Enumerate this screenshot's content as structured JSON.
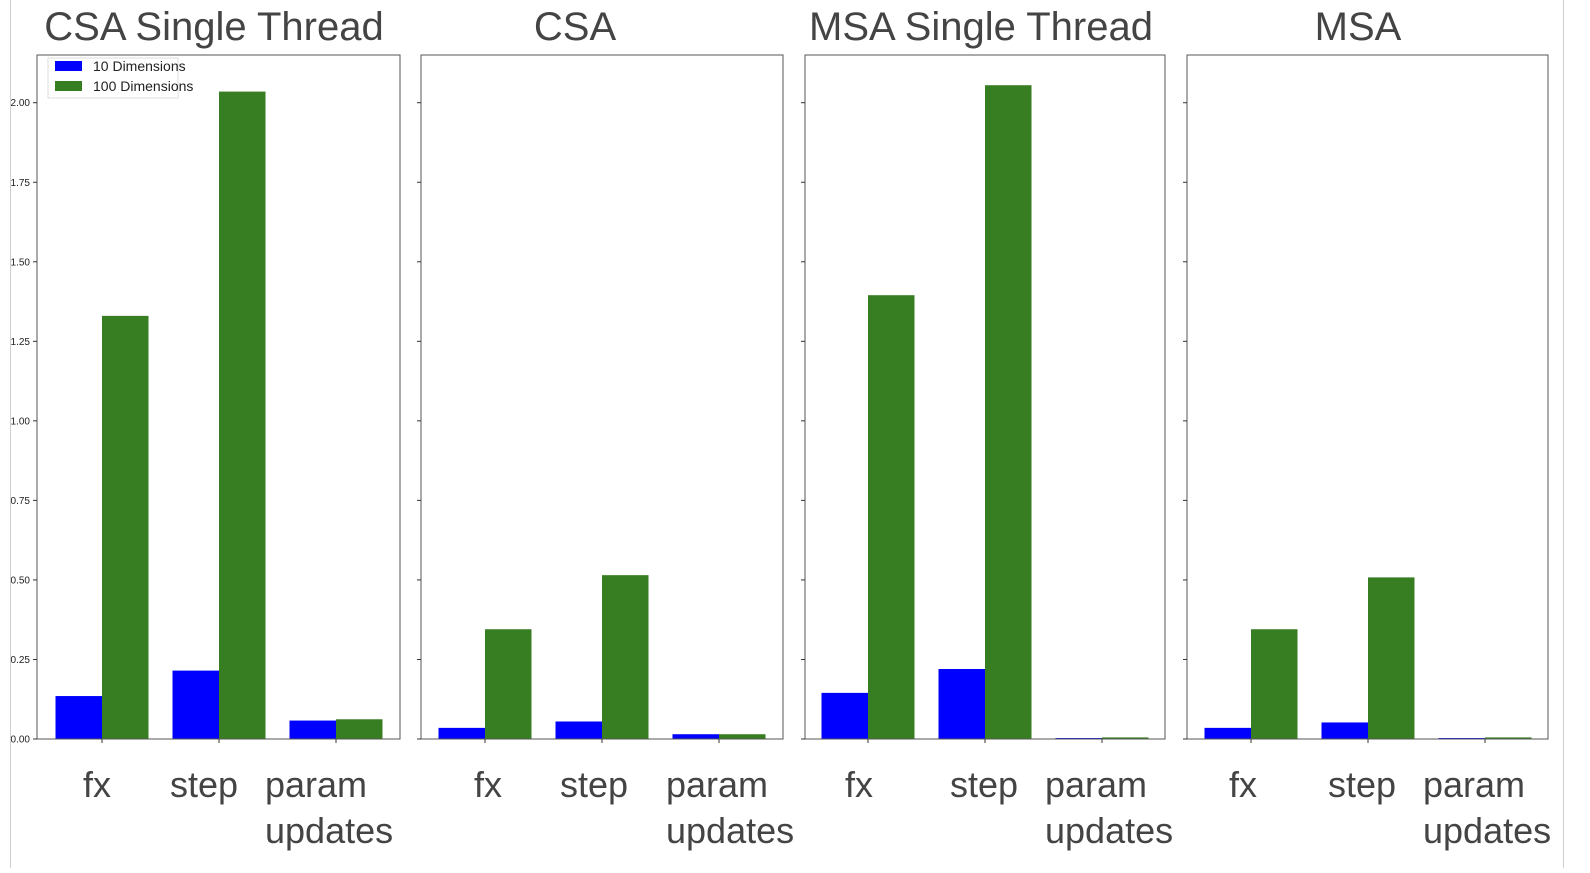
{
  "chart_data": {
    "type": "bar",
    "ylim": [
      0,
      2.15
    ],
    "yticks": [
      "0.00",
      "0.25",
      "0.50",
      "0.75",
      "1.00",
      "1.25",
      "1.50",
      "1.75",
      "2.00"
    ],
    "legend": {
      "placement": "top-left",
      "entries": [
        {
          "label": "10 Dimensions",
          "color": "#0000ff"
        },
        {
          "label": "100 Dimensions",
          "color": "#377e22"
        }
      ]
    },
    "panels": [
      {
        "title": "CSA Single Thread",
        "categories": [
          [
            "fx"
          ],
          [
            "step"
          ],
          [
            "param",
            "updates"
          ]
        ],
        "series": [
          {
            "name": "10 Dimensions",
            "color": "#0000ff",
            "values": [
              0.135,
              0.215,
              0.058
            ]
          },
          {
            "name": "100 Dimensions",
            "color": "#377e22",
            "values": [
              1.33,
              2.035,
              0.062
            ]
          }
        ]
      },
      {
        "title": "CSA",
        "categories": [
          [
            "fx"
          ],
          [
            "step"
          ],
          [
            "param",
            "updates"
          ]
        ],
        "series": [
          {
            "name": "10 Dimensions",
            "color": "#0000ff",
            "values": [
              0.035,
              0.055,
              0.015
            ]
          },
          {
            "name": "100 Dimensions",
            "color": "#377e22",
            "values": [
              0.345,
              0.515,
              0.015
            ]
          }
        ]
      },
      {
        "title": "MSA Single Thread",
        "categories": [
          [
            "fx"
          ],
          [
            "step"
          ],
          [
            "param",
            "updates"
          ]
        ],
        "series": [
          {
            "name": "10 Dimensions",
            "color": "#0000ff",
            "values": [
              0.145,
              0.22,
              0.003
            ]
          },
          {
            "name": "100 Dimensions",
            "color": "#377e22",
            "values": [
              1.395,
              2.055,
              0.005
            ]
          }
        ]
      },
      {
        "title": "MSA",
        "categories": [
          [
            "fx"
          ],
          [
            "step"
          ],
          [
            "param",
            "updates"
          ]
        ],
        "series": [
          {
            "name": "10 Dimensions",
            "color": "#0000ff",
            "values": [
              0.035,
              0.052,
              0.003
            ]
          },
          {
            "name": "100 Dimensions",
            "color": "#377e22",
            "values": [
              0.345,
              0.508,
              0.005
            ]
          }
        ]
      }
    ]
  }
}
